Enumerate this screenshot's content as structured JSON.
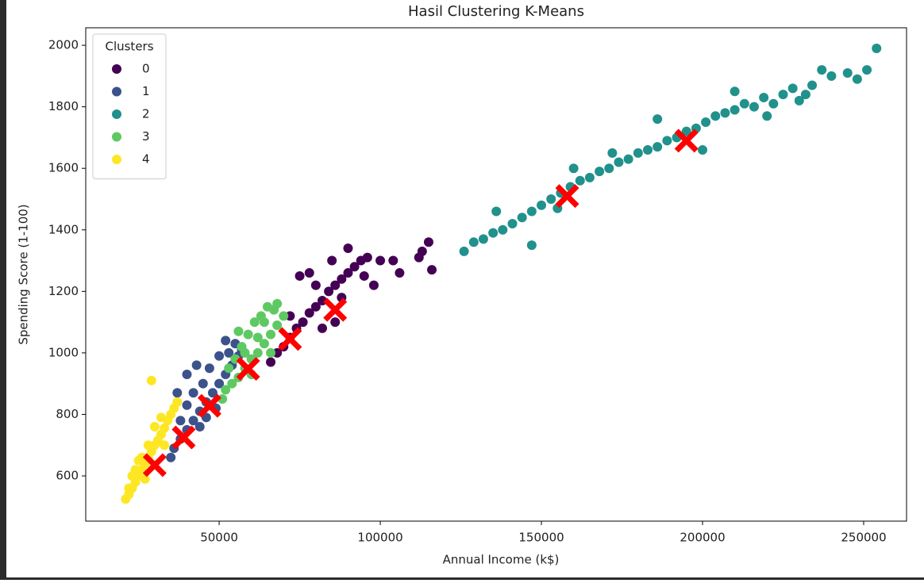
{
  "chart_data": {
    "type": "scatter",
    "title": "Hasil Clustering K-Means",
    "x_label": "Annual Income (k$)",
    "y_label": "Spending Score (1-100)",
    "legend_title": "Clusters",
    "legend": "upper left",
    "xlim": [
      8600,
      263300
    ],
    "ylim": [
      453,
      2057
    ],
    "xticks": [
      50000,
      100000,
      150000,
      200000,
      250000
    ],
    "yticks": [
      600,
      800,
      1000,
      1200,
      1400,
      1600,
      1800,
      2000
    ],
    "series": [
      {
        "name": "0",
        "color": "#440154",
        "x": [
          66000,
          68000,
          70000,
          72000,
          74000,
          76000,
          78000,
          80000,
          82000,
          84000,
          86000,
          88000,
          90000,
          92000,
          94000,
          96000,
          100000,
          104000,
          106000,
          112000,
          115000,
          116000,
          113000,
          75000,
          78000,
          85000,
          90000,
          80000,
          88000,
          95000,
          98000,
          82000,
          72000,
          86000
        ],
        "values": [
          970,
          1000,
          1020,
          1050,
          1080,
          1100,
          1130,
          1150,
          1170,
          1200,
          1220,
          1240,
          1260,
          1280,
          1300,
          1310,
          1300,
          1300,
          1260,
          1310,
          1360,
          1270,
          1330,
          1250,
          1260,
          1300,
          1340,
          1220,
          1180,
          1250,
          1220,
          1080,
          1120,
          1100
        ]
      },
      {
        "name": "1",
        "color": "#3b528b",
        "x": [
          35000,
          36000,
          38000,
          40000,
          42000,
          44000,
          46000,
          48000,
          50000,
          52000,
          54000,
          56000,
          57000,
          38000,
          40000,
          42000,
          45000,
          47000,
          50000,
          52000,
          55000,
          44000,
          46000,
          49000,
          37000,
          40000,
          53000,
          43000
        ],
        "values": [
          660,
          690,
          720,
          750,
          780,
          810,
          840,
          870,
          900,
          930,
          960,
          990,
          1010,
          780,
          830,
          870,
          900,
          950,
          990,
          1040,
          1030,
          760,
          790,
          820,
          870,
          930,
          1000,
          960
        ]
      },
      {
        "name": "2",
        "color": "#21918c",
        "x": [
          126000,
          129000,
          132000,
          135000,
          138000,
          141000,
          144000,
          147000,
          150000,
          153000,
          156000,
          159000,
          162000,
          165000,
          168000,
          171000,
          174000,
          177000,
          180000,
          183000,
          186000,
          189000,
          192000,
          195000,
          198000,
          201000,
          204000,
          207000,
          210000,
          213000,
          216000,
          219000,
          222000,
          225000,
          228000,
          230000,
          232000,
          234000,
          237000,
          240000,
          245000,
          248000,
          251000,
          254000,
          186000,
          210000,
          220000,
          147000,
          160000,
          172000,
          136000,
          200000,
          155000
        ],
        "values": [
          1330,
          1360,
          1370,
          1390,
          1400,
          1420,
          1440,
          1460,
          1480,
          1500,
          1520,
          1540,
          1560,
          1570,
          1590,
          1600,
          1620,
          1630,
          1650,
          1660,
          1670,
          1690,
          1700,
          1720,
          1730,
          1750,
          1770,
          1780,
          1790,
          1810,
          1800,
          1830,
          1810,
          1840,
          1860,
          1820,
          1840,
          1870,
          1920,
          1900,
          1910,
          1890,
          1920,
          1990,
          1760,
          1850,
          1770,
          1350,
          1600,
          1650,
          1460,
          1660,
          1470
        ]
      },
      {
        "name": "3",
        "color": "#5ec962",
        "x": [
          51000,
          52000,
          54000,
          56000,
          58000,
          60000,
          62000,
          64000,
          66000,
          68000,
          70000,
          55000,
          57000,
          59000,
          61000,
          63000,
          65000,
          68000,
          67000,
          53000,
          56000,
          58000,
          62000,
          66000,
          60000,
          64000
        ],
        "values": [
          850,
          880,
          900,
          920,
          950,
          980,
          1000,
          1030,
          1060,
          1090,
          1120,
          980,
          1020,
          1060,
          1100,
          1120,
          1150,
          1160,
          1140,
          950,
          1070,
          1000,
          1050,
          1000,
          930,
          1100
        ]
      },
      {
        "name": "4",
        "color": "#fde725",
        "x": [
          21000,
          22000,
          23000,
          24000,
          25000,
          26000,
          27000,
          28000,
          29000,
          30000,
          31000,
          32000,
          33000,
          34000,
          35000,
          36000,
          37000,
          24000,
          26000,
          28000,
          23000,
          25000,
          30000,
          29000,
          32000,
          27000,
          33000,
          22000
        ],
        "values": [
          525,
          540,
          560,
          580,
          600,
          620,
          640,
          660,
          680,
          700,
          715,
          735,
          755,
          780,
          800,
          820,
          840,
          620,
          660,
          700,
          600,
          650,
          760,
          910,
          790,
          590,
          700,
          560
        ]
      }
    ],
    "centroids": {
      "color": "#ff0000",
      "x": [
        30000,
        39000,
        47000,
        59000,
        72000,
        86000,
        158000,
        195000
      ],
      "values": [
        635,
        725,
        828,
        948,
        1045,
        1140,
        1510,
        1690
      ]
    }
  }
}
